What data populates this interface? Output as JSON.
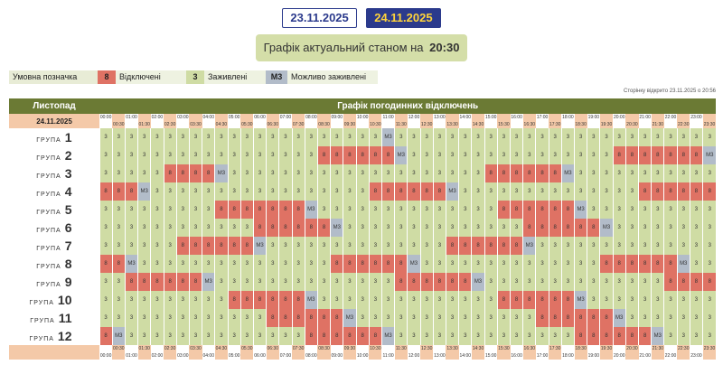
{
  "dates": [
    "23.11.2025",
    "24.11.2025"
  ],
  "active_date": 1,
  "status": {
    "label": "Графік актуальний станом на",
    "time": "20:30"
  },
  "legend": {
    "title": "Умовна позначка",
    "items": [
      {
        "symbol": "8",
        "label": "Відключені",
        "color": "#df7264"
      },
      {
        "symbol": "3",
        "label": "Заживлені",
        "color": "#cfdca4"
      },
      {
        "symbol": "М3",
        "label": "Можливо заживлені",
        "color": "#b2bcc9"
      }
    ]
  },
  "updated": "Сторінку відкрито 23.11.2025 о 20:56",
  "table": {
    "month": "Листопад",
    "title": "Графік погодинних відключень",
    "date": "24.11.2025",
    "hours": [
      "00:00",
      "01:00",
      "02:00",
      "03:00",
      "04:00",
      "05:00",
      "06:00",
      "07:00",
      "08:00",
      "09:00",
      "10:00",
      "11:00",
      "12:00",
      "13:00",
      "14:00",
      "15:00",
      "16:00",
      "17:00",
      "18:00",
      "19:00",
      "20:00",
      "21:00",
      "22:00",
      "23:00",
      "00:00"
    ],
    "halves": [
      "00:30",
      "01:30",
      "02:30",
      "03:30",
      "04:30",
      "05:30",
      "06:30",
      "07:30",
      "08:30",
      "09:30",
      "10:30",
      "11:30",
      "12:30",
      "13:30",
      "14:30",
      "15:30",
      "16:30",
      "17:30",
      "18:30",
      "19:30",
      "20:30",
      "21:30",
      "22:30",
      "23:30"
    ],
    "group_prefix": "ГРУПА",
    "groups": [
      {
        "n": "1",
        "cells": "3333333333333333333333M33333333333333333333333333333333333333333333333333333333333333333333333333333M338"
      },
      {
        "n": "2",
        "cells": "33333333333333333888888M33333333333333338888888M3333333333333888888M333333333333888888M33333333333888"
      },
      {
        "n": "3",
        "cells": "333338888M33333333333333333333888888M33333333333333888888M33333333333333888888M333333333333333888888M"
      },
      {
        "n": "4",
        "cells": "888M33333333333333333888888M33333333333333888888M33333333333333888888M33333333333333888888M333333333"
      },
      {
        "n": "5",
        "cells": "3333333338888888M33333333333333888888M33333333333333888888M33333333333333888888M33333333333333888888"
      },
      {
        "n": "6",
        "cells": "333333333333888888M33333333333333888888M33333333333333888888M33333333333333888888M33333333333333"
      },
      {
        "n": "7",
        "cells": "333333888888M33333333333333888888M33333333333333888888M33333333333333888888M33333333333333888888M"
      },
      {
        "n": "8",
        "cells": "88M333333333333333888888M33333333333333888888M33333333333333888888M33333333333333888888M333333333"
      },
      {
        "n": "9",
        "cells": "33888888M33333333333333888888M33333333333333888888M33333333333333888888M33333333333333888888M3333"
      },
      {
        "n": "10",
        "cells": "3333333333888888M33333333333333888888M33333333333333888888M33333333333333888888M333333333333888"
      },
      {
        "n": "11",
        "cells": "3333333333333888888M33333333333333888888M33333333333333888888M33333333333333888888M33333333338"
      },
      {
        "n": "12",
        "cells": "8M33333333333333888888M33333333333333888888M33333333333333888888M33333333333333888888M3333333333"
      }
    ]
  }
}
